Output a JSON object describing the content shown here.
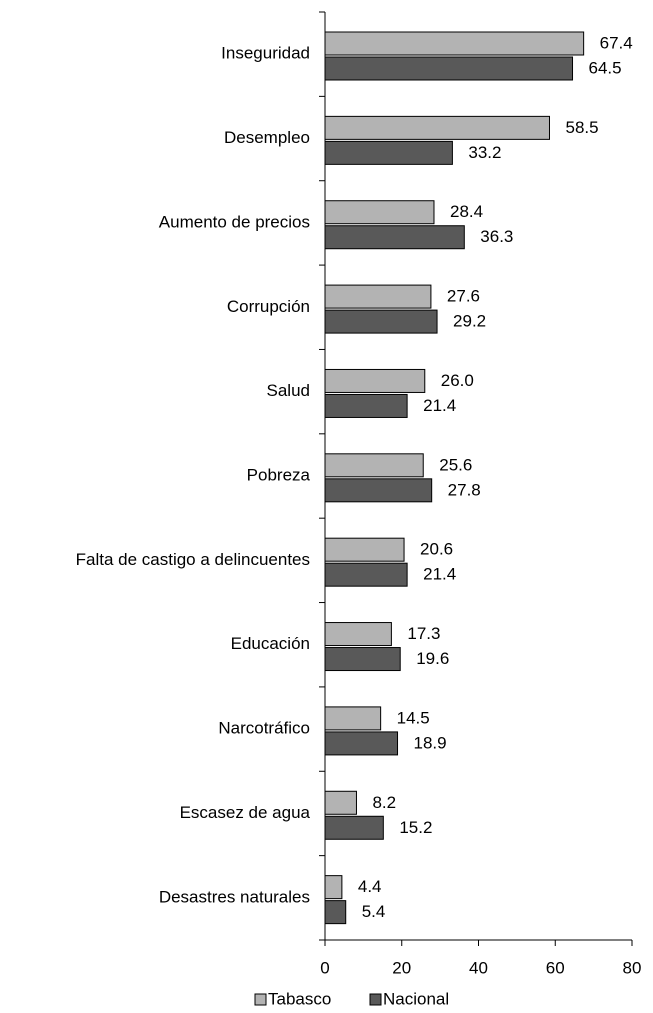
{
  "chart_data": {
    "type": "barh",
    "categories": [
      "Inseguridad",
      "Desempleo",
      "Aumento de precios",
      "Corrupción",
      "Salud",
      "Pobreza",
      "Falta de castigo a delincuentes",
      "Educación",
      "Narcotráfico",
      "Escasez de agua",
      "Desastres naturales"
    ],
    "series": [
      {
        "name": "Tabasco",
        "color": "#b3b3b3",
        "values": [
          67.4,
          58.5,
          28.4,
          27.6,
          26.0,
          25.6,
          20.6,
          17.3,
          14.5,
          8.2,
          4.4
        ],
        "value_labels": [
          "67.4",
          "58.5",
          "28.4",
          "27.6",
          "26.0",
          "25.6",
          "20.6",
          "17.3",
          "14.5",
          "8.2",
          "4.4"
        ]
      },
      {
        "name": "Nacional",
        "color": "#595959",
        "values": [
          64.5,
          33.2,
          36.3,
          29.2,
          21.4,
          27.8,
          21.4,
          19.6,
          18.9,
          15.2,
          5.4
        ],
        "value_labels": [
          "64.5",
          "33.2",
          "36.3",
          "29.2",
          "21.4",
          "27.8",
          "21.4",
          "19.6",
          "18.9",
          "15.2",
          "5.4"
        ]
      }
    ],
    "xlim": [
      0,
      80
    ],
    "xticks": [
      0,
      20,
      40,
      60,
      80
    ],
    "legend": "bottom"
  }
}
